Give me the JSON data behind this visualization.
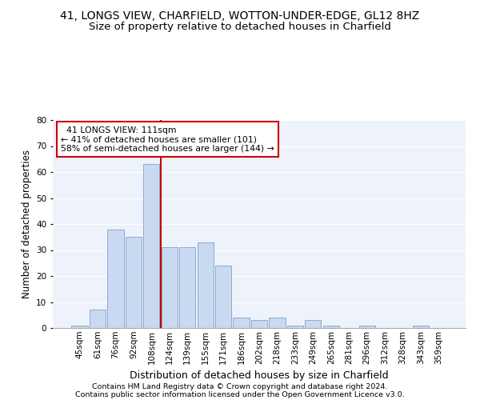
{
  "title_line1": "41, LONGS VIEW, CHARFIELD, WOTTON-UNDER-EDGE, GL12 8HZ",
  "title_line2": "Size of property relative to detached houses in Charfield",
  "xlabel": "Distribution of detached houses by size in Charfield",
  "ylabel": "Number of detached properties",
  "categories": [
    "45sqm",
    "61sqm",
    "76sqm",
    "92sqm",
    "108sqm",
    "124sqm",
    "139sqm",
    "155sqm",
    "171sqm",
    "186sqm",
    "202sqm",
    "218sqm",
    "233sqm",
    "249sqm",
    "265sqm",
    "281sqm",
    "296sqm",
    "312sqm",
    "328sqm",
    "343sqm",
    "359sqm"
  ],
  "values": [
    1,
    7,
    38,
    35,
    63,
    31,
    31,
    33,
    24,
    4,
    3,
    4,
    1,
    3,
    1,
    0,
    1,
    0,
    0,
    1,
    0
  ],
  "bar_color": "#c9d9f0",
  "bar_edge_color": "#7ba3cc",
  "vline_index": 4,
  "vline_color": "#cc0000",
  "annotation_text": "  41 LONGS VIEW: 111sqm\n← 41% of detached houses are smaller (101)\n58% of semi-detached houses are larger (144) →",
  "annotation_box_color": "white",
  "annotation_box_edge_color": "#cc0000",
  "ylim_max": 80,
  "yticks": [
    0,
    10,
    20,
    30,
    40,
    50,
    60,
    70,
    80
  ],
  "footer_line1": "Contains HM Land Registry data © Crown copyright and database right 2024.",
  "footer_line2": "Contains public sector information licensed under the Open Government Licence v3.0.",
  "bg_color": "#eef2fb",
  "grid_color": "#ffffff",
  "title1_fontsize": 10,
  "title2_fontsize": 9.5,
  "xlabel_fontsize": 9,
  "ylabel_fontsize": 8.5,
  "tick_fontsize": 7.5,
  "annotation_fontsize": 7.8,
  "footer_fontsize": 6.8
}
